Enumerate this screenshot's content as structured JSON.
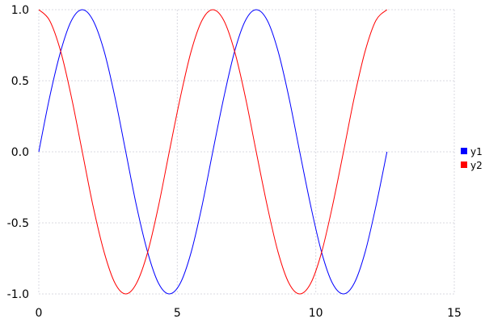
{
  "chart_data": {
    "type": "line",
    "title": "",
    "xlabel": "",
    "ylabel": "",
    "xlim": [
      0,
      15
    ],
    "ylim": [
      -1,
      1
    ],
    "xticks": [
      "0",
      "5",
      "10",
      "15"
    ],
    "yticks": [
      "1.0",
      "0.5",
      "0.0",
      "-0.5",
      "-1.0"
    ],
    "grid": true,
    "legend_position": "right",
    "x": [
      0,
      0.39,
      0.79,
      1.18,
      1.57,
      1.96,
      2.36,
      2.75,
      3.14,
      3.53,
      3.93,
      4.32,
      4.71,
      5.11,
      5.5,
      5.89,
      6.28,
      6.68,
      7.07,
      7.46,
      7.85,
      8.25,
      8.64,
      9.03,
      9.42,
      9.82,
      10.21,
      10.6,
      11.0,
      11.39,
      11.78,
      12.17,
      12.57
    ],
    "series": [
      {
        "name": "y1",
        "color": "#0000ff",
        "values": [
          0,
          0.383,
          0.707,
          0.924,
          1,
          0.924,
          0.707,
          0.383,
          0,
          -0.383,
          -0.707,
          -0.924,
          -1,
          -0.924,
          -0.707,
          -0.383,
          0,
          0.383,
          0.707,
          0.924,
          1,
          0.924,
          0.707,
          0.383,
          0,
          -0.383,
          -0.707,
          -0.924,
          -1,
          -0.924,
          -0.707,
          -0.383,
          0
        ]
      },
      {
        "name": "y2",
        "color": "#ff0000",
        "values": [
          1,
          0.924,
          0.707,
          0.383,
          0,
          -0.383,
          -0.707,
          -0.924,
          -1,
          -0.924,
          -0.707,
          -0.383,
          0,
          0.383,
          0.707,
          0.924,
          1,
          0.924,
          0.707,
          0.383,
          0,
          -0.383,
          -0.707,
          -0.924,
          -1,
          -0.924,
          -0.707,
          -0.383,
          0,
          0.383,
          0.707,
          0.924,
          1
        ]
      }
    ]
  }
}
